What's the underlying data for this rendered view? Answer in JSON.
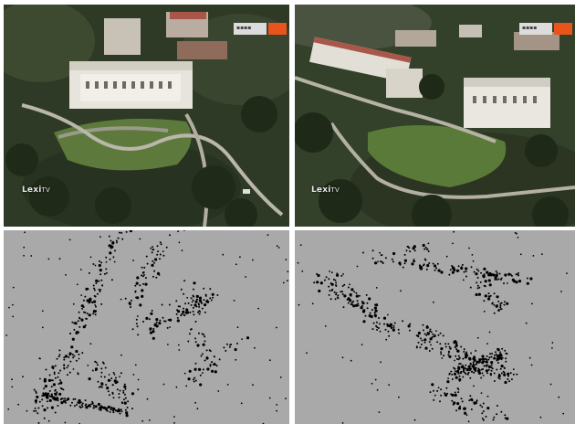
{
  "panels": {
    "aerial_left": {
      "logo_main": "Lexi",
      "logo_suffix": "TV"
    },
    "aerial_right": {
      "logo_main": "Lexi",
      "logo_suffix": "TV"
    }
  },
  "colors": {
    "divider": "#ffffff",
    "scatter_background": "#a9a9a9",
    "scatter_points": "#000000",
    "badge_orange": "#e8541c"
  }
}
